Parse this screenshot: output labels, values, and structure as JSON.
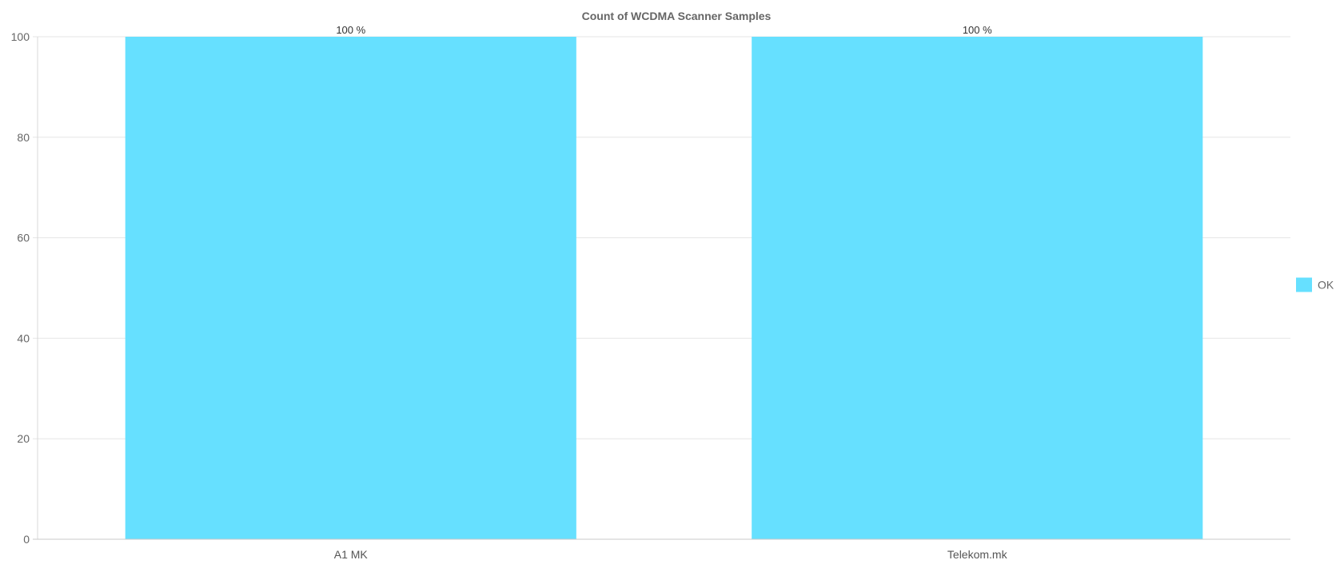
{
  "chart_data": {
    "type": "bar",
    "title": "Count of WCDMA Scanner Samples",
    "categories": [
      "A1 MK",
      "Telekom.mk"
    ],
    "series": [
      {
        "name": "OK",
        "color": "#66e0ff",
        "values": [
          100,
          100
        ],
        "data_labels": [
          "100 %",
          "100 %"
        ]
      }
    ],
    "y_ticks": [
      0,
      20,
      40,
      60,
      80,
      100
    ],
    "ylim": [
      0,
      100
    ],
    "grid": true,
    "legend": "right"
  }
}
